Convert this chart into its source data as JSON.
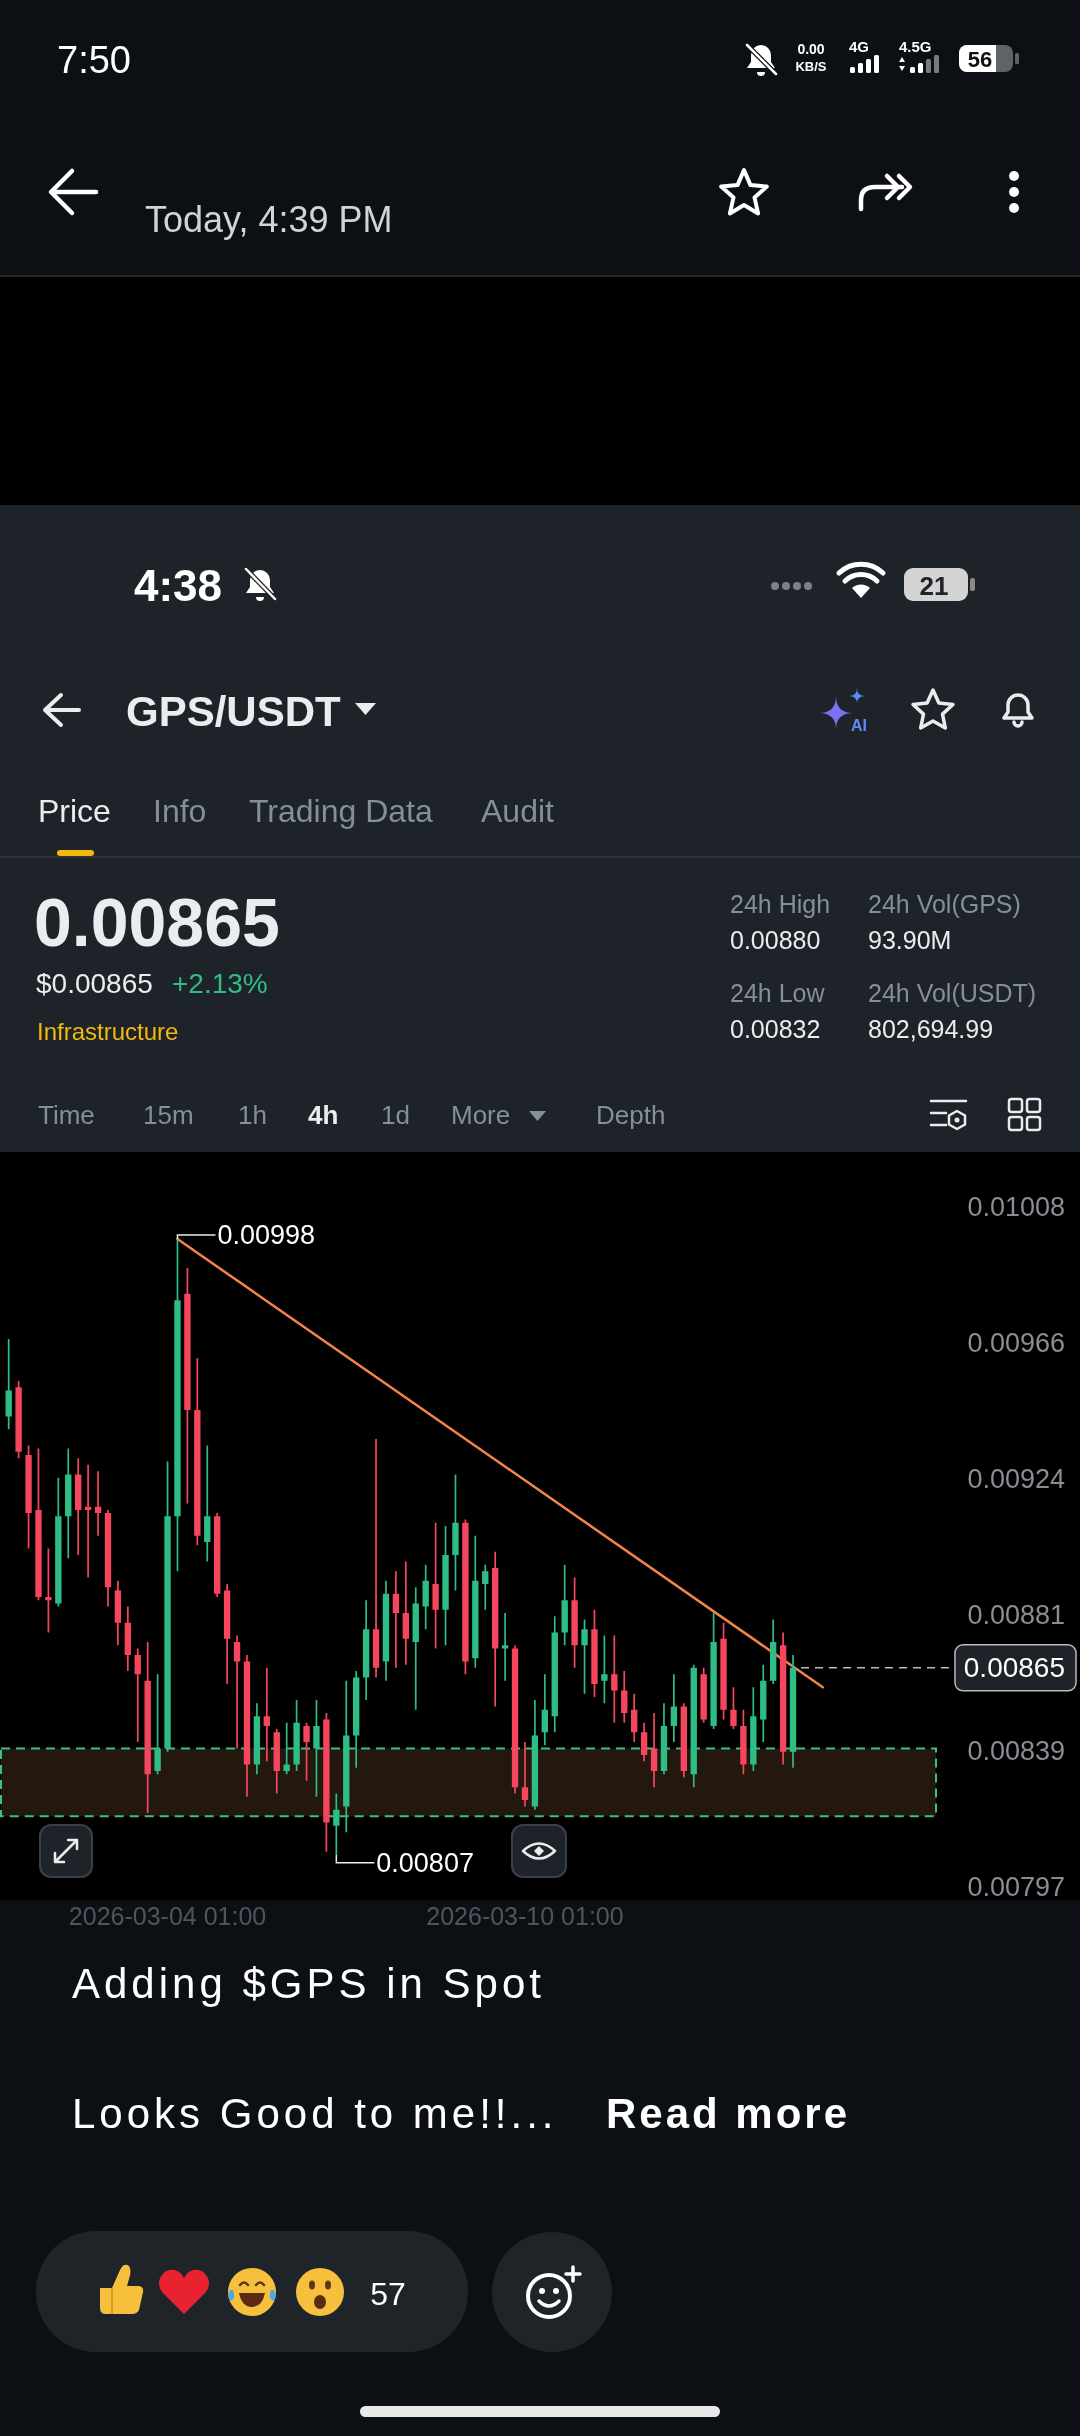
{
  "chart_data": {
    "type": "candlestick",
    "title": "GPS/USDT",
    "x": [
      "2026-03-01T09:00",
      "2026-03-01T13:00",
      "2026-03-01T17:00",
      "2026-03-01T21:00",
      "2026-03-02T01:00",
      "2026-03-02T05:00",
      "2026-03-02T09:00",
      "2026-03-02T13:00",
      "2026-03-02T17:00",
      "2026-03-02T21:00",
      "2026-03-03T01:00",
      "2026-03-03T05:00",
      "2026-03-03T09:00",
      "2026-03-03T13:00",
      "2026-03-03T17:00",
      "2026-03-03T21:00",
      "2026-03-04T01:00",
      "2026-03-04T05:00",
      "2026-03-04T09:00",
      "2026-03-04T13:00",
      "2026-03-04T17:00",
      "2026-03-04T21:00",
      "2026-03-05T01:00",
      "2026-03-05T05:00",
      "2026-03-05T09:00",
      "2026-03-05T13:00",
      "2026-03-05T17:00",
      "2026-03-05T21:00",
      "2026-03-06T01:00",
      "2026-03-06T05:00",
      "2026-03-06T09:00",
      "2026-03-06T13:00",
      "2026-03-06T17:00",
      "2026-03-06T21:00",
      "2026-03-07T01:00",
      "2026-03-07T05:00",
      "2026-03-07T09:00",
      "2026-03-07T13:00",
      "2026-03-07T17:00",
      "2026-03-07T21:00",
      "2026-03-08T01:00",
      "2026-03-08T05:00",
      "2026-03-08T09:00",
      "2026-03-08T13:00",
      "2026-03-08T17:00",
      "2026-03-08T21:00",
      "2026-03-09T01:00",
      "2026-03-09T05:00",
      "2026-03-09T09:00",
      "2026-03-09T13:00",
      "2026-03-09T17:00",
      "2026-03-09T21:00",
      "2026-03-10T01:00",
      "2026-03-10T05:00",
      "2026-03-10T09:00",
      "2026-03-10T13:00",
      "2026-03-10T17:00",
      "2026-03-10T21:00",
      "2026-03-11T01:00",
      "2026-03-11T05:00",
      "2026-03-11T09:00",
      "2026-03-11T13:00",
      "2026-03-11T17:00",
      "2026-03-11T21:00",
      "2026-03-12T01:00",
      "2026-03-12T05:00",
      "2026-03-12T09:00",
      "2026-03-12T13:00",
      "2026-03-12T17:00",
      "2026-03-12T21:00",
      "2026-03-13T01:00",
      "2026-03-13T05:00",
      "2026-03-13T09:00",
      "2026-03-13T13:00",
      "2026-03-13T17:00",
      "2026-03-13T21:00",
      "2026-03-14T01:00",
      "2026-03-14T05:00",
      "2026-03-14T09:00",
      "2026-03-14T13:00"
    ],
    "series": [
      {
        "type": "line",
        "x": [
          "2026-03-04T05:00",
          "2026-03-15T01:00"
        ],
        "values": [
          0.00998,
          0.00859
        ],
        "color": "#f0854a"
      },
      {
        "type": "candlestick",
        "ohlc": [
          [
            0.00943,
            0.00967,
            0.00939,
            0.00951
          ],
          [
            0.00952,
            0.00954,
            0.0093,
            0.00932
          ],
          [
            0.00931,
            0.00934,
            0.00902,
            0.00913
          ],
          [
            0.00914,
            0.00933,
            0.00886,
            0.00887
          ],
          [
            0.00887,
            0.00902,
            0.00876,
            0.00886
          ],
          [
            0.00885,
            0.00924,
            0.00884,
            0.00912
          ],
          [
            0.00912,
            0.00933,
            0.00899,
            0.00925
          ],
          [
            0.00925,
            0.0093,
            0.009,
            0.00914
          ],
          [
            0.00915,
            0.00928,
            0.00893,
            0.00914
          ],
          [
            0.00915,
            0.00926,
            0.00906,
            0.00913
          ],
          [
            0.00913,
            0.00914,
            0.00884,
            0.0089
          ],
          [
            0.00889,
            0.00892,
            0.00872,
            0.00879
          ],
          [
            0.00879,
            0.00884,
            0.00864,
            0.00869
          ],
          [
            0.00869,
            0.00871,
            0.00842,
            0.00863
          ],
          [
            0.00861,
            0.00873,
            0.0082,
            0.00832
          ],
          [
            0.00833,
            0.00863,
            0.00832,
            0.0084
          ],
          [
            0.0084,
            0.00929,
            0.00839,
            0.00912
          ],
          [
            0.00912,
            0.00998,
            0.00895,
            0.00979
          ],
          [
            0.00981,
            0.00989,
            0.00916,
            0.00945
          ],
          [
            0.00945,
            0.00961,
            0.00903,
            0.00906
          ],
          [
            0.00904,
            0.00934,
            0.00898,
            0.00912
          ],
          [
            0.00912,
            0.00913,
            0.00887,
            0.00888
          ],
          [
            0.00889,
            0.00891,
            0.0086,
            0.00874
          ],
          [
            0.00873,
            0.00875,
            0.0084,
            0.00867
          ],
          [
            0.00867,
            0.00869,
            0.00825,
            0.00835
          ],
          [
            0.00835,
            0.00854,
            0.00832,
            0.0085
          ],
          [
            0.0085,
            0.00865,
            0.00836,
            0.00847
          ],
          [
            0.00845,
            0.00846,
            0.00826,
            0.00833
          ],
          [
            0.00833,
            0.00848,
            0.00832,
            0.00835
          ],
          [
            0.00835,
            0.00855,
            0.00833,
            0.00848
          ],
          [
            0.00847,
            0.00848,
            0.0083,
            0.00842
          ],
          [
            0.0084,
            0.00855,
            0.00825,
            0.00847
          ],
          [
            0.00849,
            0.00851,
            0.00808,
            0.00817
          ],
          [
            0.00816,
            0.00826,
            0.00807,
            0.00821
          ],
          [
            0.00822,
            0.00861,
            0.00814,
            0.00844
          ],
          [
            0.00844,
            0.00864,
            0.00834,
            0.00862
          ],
          [
            0.00862,
            0.00886,
            0.00855,
            0.00877
          ],
          [
            0.00877,
            0.00936,
            0.00862,
            0.00865
          ],
          [
            0.00867,
            0.00892,
            0.00861,
            0.00888
          ],
          [
            0.00888,
            0.00895,
            0.00865,
            0.00882
          ],
          [
            0.00882,
            0.00898,
            0.00866,
            0.00874
          ],
          [
            0.00873,
            0.0089,
            0.00852,
            0.00885
          ],
          [
            0.00884,
            0.00897,
            0.00877,
            0.00892
          ],
          [
            0.00891,
            0.0091,
            0.00871,
            0.00883
          ],
          [
            0.00883,
            0.00909,
            0.00872,
            0.009
          ],
          [
            0.009,
            0.00925,
            0.00889,
            0.0091
          ],
          [
            0.0091,
            0.00911,
            0.00863,
            0.00867
          ],
          [
            0.00868,
            0.00906,
            0.00865,
            0.00892
          ],
          [
            0.00891,
            0.00897,
            0.00883,
            0.00895
          ],
          [
            0.00896,
            0.00901,
            0.00853,
            0.00871
          ],
          [
            0.00871,
            0.00882,
            0.00861,
            0.00872
          ],
          [
            0.00871,
            0.00872,
            0.00826,
            0.00828
          ],
          [
            0.00828,
            0.00842,
            0.00822,
            0.00824
          ],
          [
            0.00822,
            0.00855,
            0.00821,
            0.00844
          ],
          [
            0.00845,
            0.00863,
            0.00841,
            0.00852
          ],
          [
            0.0085,
            0.00881,
            0.00845,
            0.00876
          ],
          [
            0.00876,
            0.00897,
            0.00872,
            0.00886
          ],
          [
            0.00886,
            0.00893,
            0.00865,
            0.00872
          ],
          [
            0.00872,
            0.0088,
            0.00857,
            0.00877
          ],
          [
            0.00877,
            0.00883,
            0.00856,
            0.0086
          ],
          [
            0.00861,
            0.00875,
            0.00854,
            0.00863
          ],
          [
            0.00863,
            0.00875,
            0.00848,
            0.00858
          ],
          [
            0.00858,
            0.00864,
            0.00848,
            0.00851
          ],
          [
            0.00852,
            0.00857,
            0.00842,
            0.00845
          ],
          [
            0.00845,
            0.00848,
            0.00836,
            0.00838
          ],
          [
            0.0084,
            0.00851,
            0.00828,
            0.00833
          ],
          [
            0.00833,
            0.00854,
            0.00832,
            0.00847
          ],
          [
            0.00847,
            0.00863,
            0.00842,
            0.00853
          ],
          [
            0.00853,
            0.00854,
            0.00831,
            0.00833
          ],
          [
            0.00832,
            0.00866,
            0.00828,
            0.00865
          ],
          [
            0.00863,
            0.00865,
            0.00848,
            0.00849
          ],
          [
            0.00847,
            0.00882,
            0.00846,
            0.00873
          ],
          [
            0.00874,
            0.00879,
            0.00849,
            0.00852
          ],
          [
            0.00852,
            0.00859,
            0.00846,
            0.00847
          ],
          [
            0.00847,
            0.00852,
            0.00832,
            0.00835
          ],
          [
            0.00835,
            0.00859,
            0.00833,
            0.0085
          ],
          [
            0.00849,
            0.00866,
            0.00842,
            0.00861
          ],
          [
            0.00861,
            0.0088,
            0.0086,
            0.00873
          ],
          [
            0.00872,
            0.00876,
            0.00835,
            0.00839
          ],
          [
            0.00839,
            0.00869,
            0.00834,
            0.00865
          ]
        ],
        "colors": [
          "#2ebd85",
          "#f6465d",
          "#f6465d",
          "#f6465d",
          "#f6465d",
          "#2ebd85",
          "#2ebd85",
          "#f6465d",
          "#f6465d",
          "#f6465d",
          "#f6465d",
          "#f6465d",
          "#f6465d",
          "#f6465d",
          "#f6465d",
          "#2ebd85",
          "#2ebd85",
          "#2ebd85",
          "#f6465d",
          "#f6465d",
          "#2ebd85",
          "#f6465d",
          "#f6465d",
          "#f6465d",
          "#f6465d",
          "#2ebd85",
          "#f6465d",
          "#f6465d",
          "#2ebd85",
          "#2ebd85",
          "#f6465d",
          "#2ebd85",
          "#f6465d",
          "#2ebd85",
          "#2ebd85",
          "#2ebd85",
          "#2ebd85",
          "#f6465d",
          "#2ebd85",
          "#f6465d",
          "#f6465d",
          "#2ebd85",
          "#2ebd85",
          "#f6465d",
          "#2ebd85",
          "#2ebd85",
          "#f6465d",
          "#2ebd85",
          "#2ebd85",
          "#f6465d",
          "#2ebd85",
          "#f6465d",
          "#f6465d",
          "#2ebd85",
          "#2ebd85",
          "#2ebd85",
          "#2ebd85",
          "#f6465d",
          "#2ebd85",
          "#f6465d",
          "#2ebd85",
          "#f6465d",
          "#f6465d",
          "#f6465d",
          "#f6465d",
          "#f6465d",
          "#2ebd85",
          "#2ebd85",
          "#f6465d",
          "#2ebd85",
          "#f6465d",
          "#2ebd85",
          "#f6465d",
          "#f6465d",
          "#f6465d",
          "#2ebd85",
          "#2ebd85",
          "#2ebd85",
          "#f6465d",
          "#2ebd85"
        ]
      }
    ],
    "xlim": [
      "2026-03-01T05:30",
      "2026-03-16T23:00"
    ],
    "xticks": [
      {
        "value": "2026-03-04T01:00",
        "label": "2026-03-04 01:00"
      },
      {
        "value": "2026-03-10T01:00",
        "label": "2026-03-10 01:00"
      }
    ],
    "ylim": [
      0.00793,
      0.01025
    ],
    "yticks": [
      0.00797,
      {
        "value": 0.008392,
        "label": "0.00839"
      },
      {
        "value": 0.008814,
        "label": "0.00881"
      },
      {
        "value": 0.009236,
        "label": "0.00924"
      },
      {
        "value": 0.009658,
        "label": "0.00966"
      },
      0.01008
    ],
    "ref_lines": [
      {
        "axis": "y",
        "value": 0.00865,
        "label": "0.00865",
        "color": "#b7bcc2",
        "line_style": "dashed"
      }
    ],
    "bands": [
      {
        "axis": "y",
        "from": 0.00819,
        "to": 0.0084,
        "color": "#23170e"
      }
    ],
    "annotations": [
      "7:50",
      "0.00",
      "KB/S",
      "4G",
      "4.5G",
      "56",
      "Today, 4:39 PM",
      "4:38",
      "21",
      "AI",
      "Price",
      "Info",
      "Trading Data",
      "Audit",
      "0.00865",
      "$0.00865",
      "+2.13%",
      "Infrastructure",
      "24h High",
      "0.00880",
      "24h Vol(GPS)",
      "93.90M",
      "24h Low",
      "0.00832",
      "24h Vol(USDT)",
      "802,694.99",
      "Time",
      "15m",
      "1h",
      "4h",
      "1d",
      "More",
      "Depth",
      {
        "text": "0.00998",
        "x": "2026-03-04T05:00",
        "y": 0.00998
      },
      {
        "text": "0.00807",
        "x": "2026-03-06T21:00",
        "y": 0.00807
      },
      "Adding $GPS in Spot",
      "Looks Good to me!!...",
      "Read more",
      "57"
    ]
  }
}
